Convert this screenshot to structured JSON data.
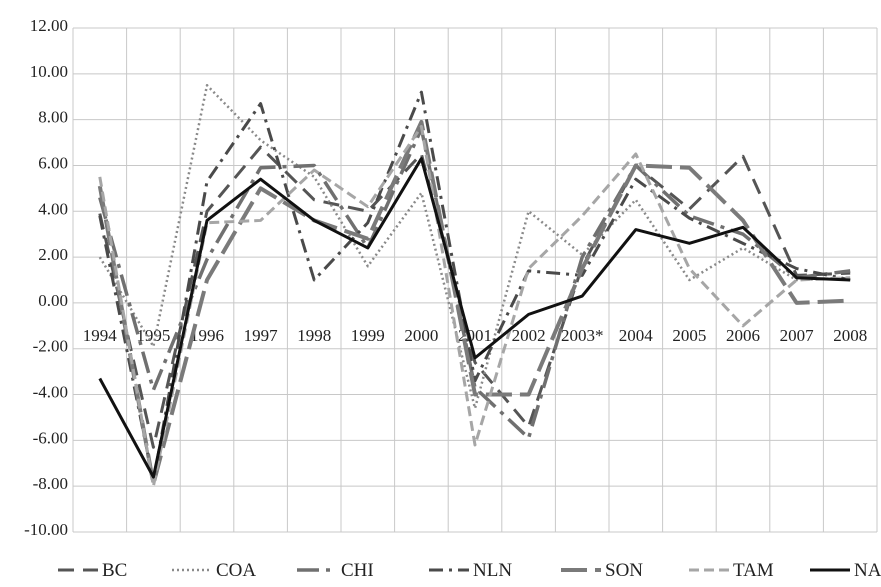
{
  "chart_data": {
    "type": "line",
    "title": "",
    "xlabel": "",
    "ylabel": "",
    "ylim": [
      -10,
      12
    ],
    "yticks": [
      "12.00",
      "10.00",
      "8.00",
      "6.00",
      "4.00",
      "2.00",
      "0.00",
      "-2.00",
      "-4.00",
      "-6.00",
      "-8.00",
      "-10.00"
    ],
    "categories": [
      "1994",
      "1995",
      "1996",
      "1997",
      "1998",
      "1999",
      "2000",
      "2001",
      "2002",
      "2003*",
      "2004",
      "2005",
      "2006",
      "2007",
      "2008"
    ],
    "grid": true,
    "legend": "bottom",
    "series": [
      {
        "name": "BC",
        "color": "#555555",
        "values": [
          3.9,
          -6.3,
          4.0,
          6.8,
          4.5,
          4.0,
          6.5,
          -2.6,
          -5.4,
          1.6,
          6.0,
          4.1,
          6.4,
          1.2,
          1.3
        ]
      },
      {
        "name": "COA",
        "color": "#8a8a8a",
        "values": [
          2.0,
          -1.9,
          9.5,
          7.1,
          5.5,
          1.6,
          4.8,
          -4.6,
          4.0,
          2.1,
          4.5,
          1.0,
          2.4,
          1.0,
          1.1
        ]
      },
      {
        "name": "CHI",
        "color": "#707070",
        "values": [
          4.6,
          -3.8,
          1.9,
          5.9,
          6.0,
          2.4,
          7.6,
          -3.7,
          -5.9,
          2.0,
          6.0,
          3.8,
          3.0,
          1.1,
          1.4
        ]
      },
      {
        "name": "NLN",
        "color": "#4a4a4a",
        "values": [
          3.8,
          -7.8,
          5.3,
          8.7,
          1.0,
          3.5,
          9.2,
          -3.4,
          1.4,
          1.2,
          5.4,
          3.7,
          2.6,
          1.5,
          1.0
        ]
      },
      {
        "name": "SON",
        "color": "#7a7a7a",
        "values": [
          5.1,
          -7.9,
          1.0,
          5.0,
          3.6,
          2.8,
          7.9,
          -4.0,
          -4.0,
          1.5,
          6.0,
          5.9,
          3.6,
          0.0,
          0.1
        ]
      },
      {
        "name": "TAM",
        "color": "#a6a6a6",
        "values": [
          5.5,
          -8.0,
          3.5,
          3.6,
          5.8,
          4.2,
          7.7,
          -6.2,
          1.5,
          3.8,
          6.5,
          1.5,
          -1.0,
          1.0,
          1.1
        ]
      },
      {
        "name": "NAL",
        "color": "#111111",
        "values": [
          -3.3,
          -7.6,
          3.6,
          5.4,
          3.6,
          2.4,
          6.3,
          -2.4,
          -0.5,
          0.3,
          3.2,
          2.6,
          3.3,
          1.1,
          1.0
        ]
      }
    ]
  }
}
